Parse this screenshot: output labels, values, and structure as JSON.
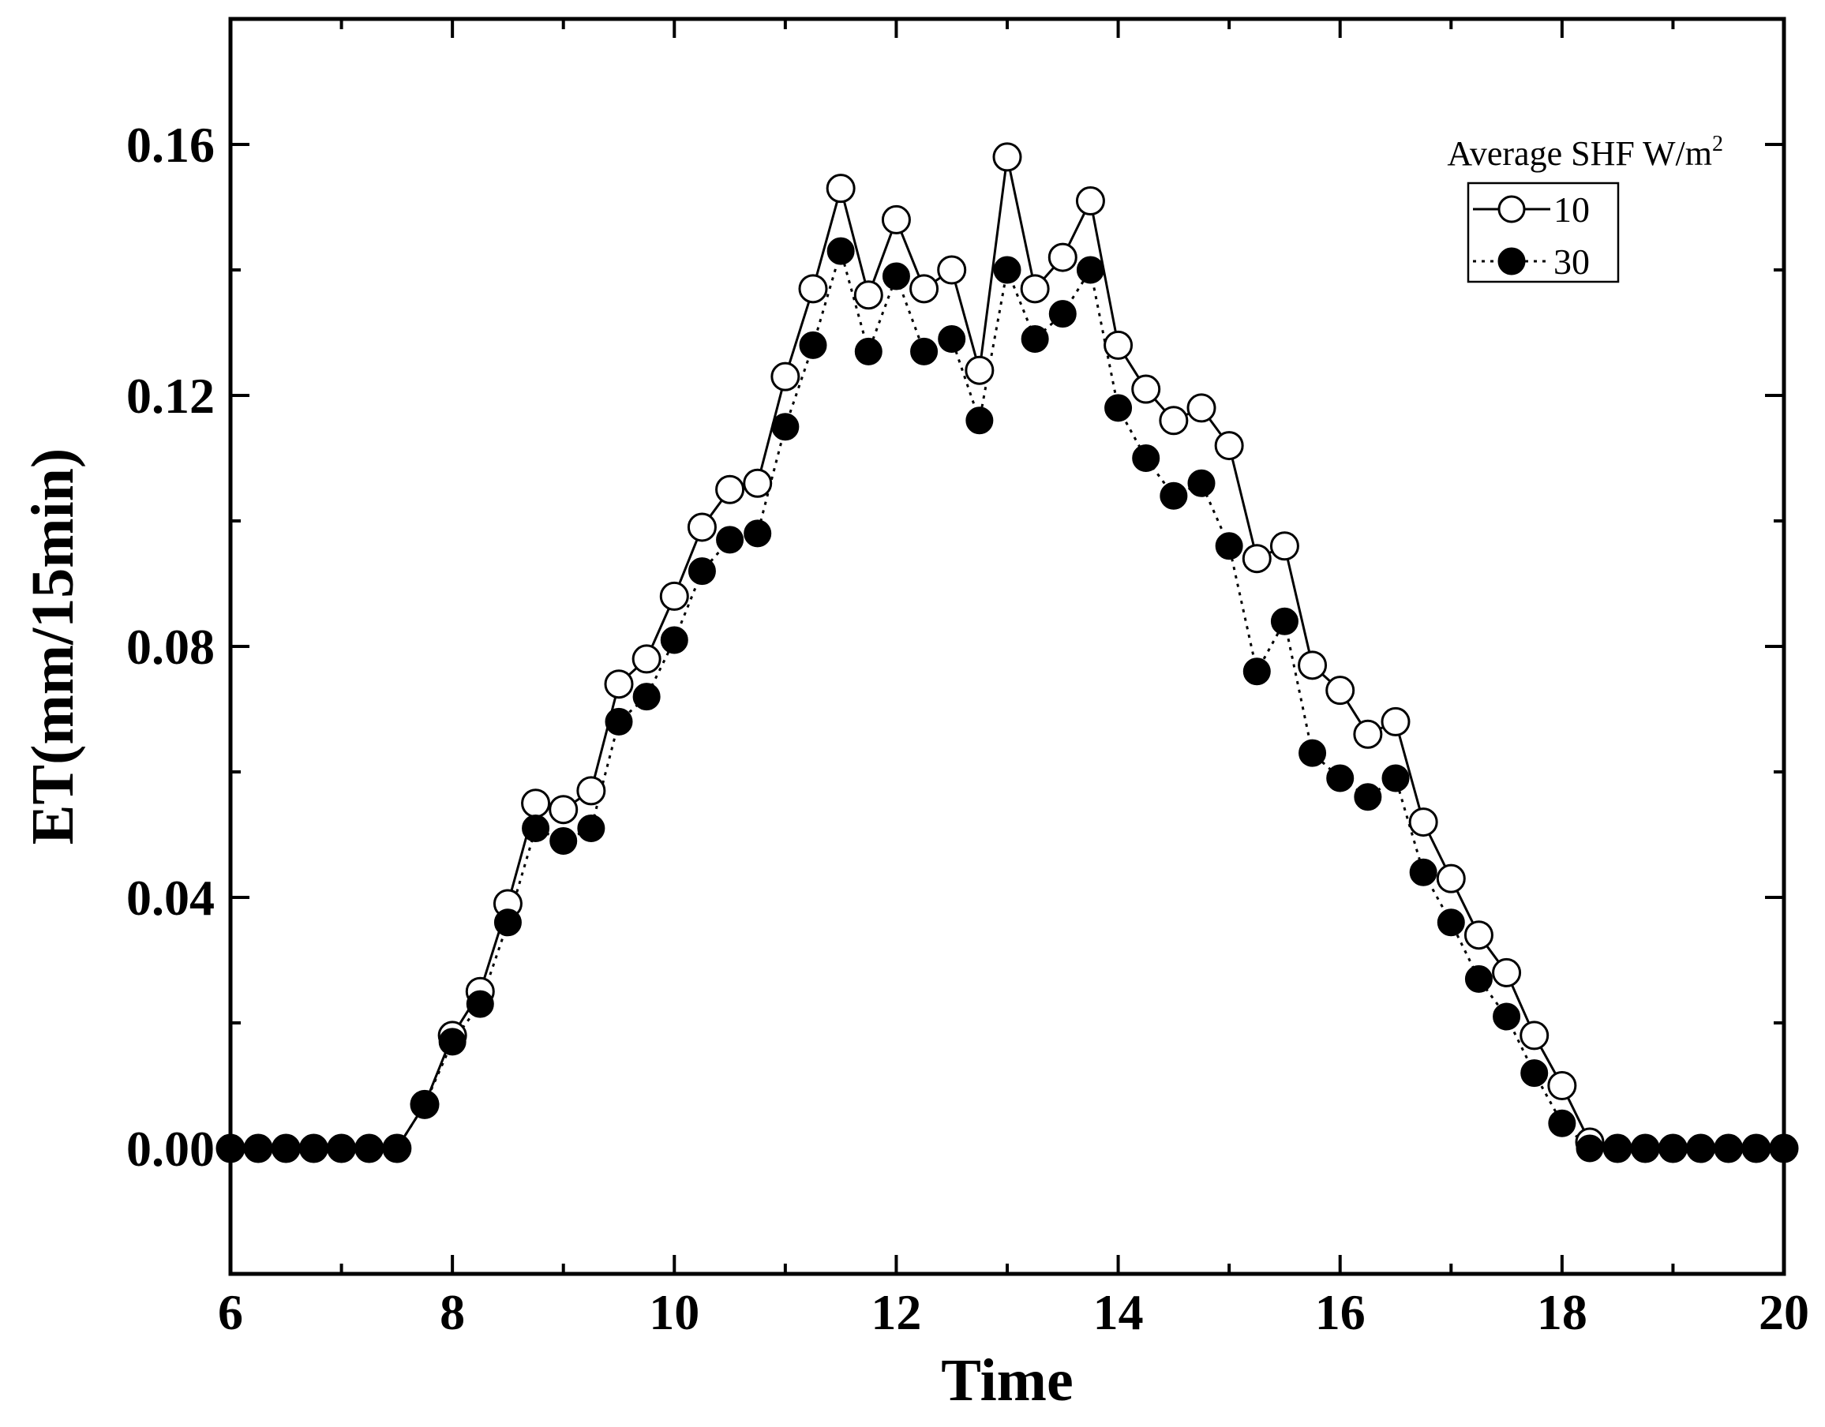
{
  "chart_data": {
    "type": "line",
    "title": "",
    "xlabel": "Time",
    "ylabel": "ET(mm/15min)",
    "xlim": [
      6,
      20
    ],
    "ylim": [
      -0.02,
      0.18
    ],
    "x_ticks": [
      6,
      8,
      10,
      12,
      14,
      16,
      18,
      20
    ],
    "x_tick_labels": [
      "6",
      "8",
      "10",
      "12",
      "14",
      "16",
      "18",
      "20"
    ],
    "y_ticks": [
      0,
      0.04,
      0.08,
      0.12,
      0.16
    ],
    "y_tick_labels": [
      "0.00",
      "0.04",
      "0.08",
      "0.12",
      "0.16"
    ],
    "grid": false,
    "legend": {
      "title_prefix": "Average SHF W/m",
      "title_superscript": "2",
      "placement": "top-right"
    },
    "x": [
      6,
      6.25,
      6.5,
      6.75,
      7,
      7.25,
      7.5,
      7.75,
      8,
      8.25,
      8.5,
      8.75,
      9,
      9.25,
      9.5,
      9.75,
      10,
      10.25,
      10.5,
      10.75,
      11,
      11.25,
      11.5,
      11.75,
      12,
      12.25,
      12.5,
      12.75,
      13,
      13.25,
      13.5,
      13.75,
      14,
      14.25,
      14.5,
      14.75,
      15,
      15.25,
      15.5,
      15.75,
      16,
      16.25,
      16.5,
      16.75,
      17,
      17.25,
      17.5,
      17.75,
      18,
      18.25,
      18.5,
      18.75,
      19,
      19.25,
      19.5,
      19.75,
      20
    ],
    "series": [
      {
        "name": "10",
        "marker": "open-circle",
        "line": "solid",
        "values": [
          0,
          0,
          0,
          0,
          0,
          0,
          0,
          0.007,
          0.018,
          0.025,
          0.039,
          0.055,
          0.054,
          0.057,
          0.074,
          0.078,
          0.088,
          0.099,
          0.105,
          0.106,
          0.123,
          0.137,
          0.153,
          0.136,
          0.148,
          0.137,
          0.14,
          0.124,
          0.158,
          0.137,
          0.142,
          0.151,
          0.128,
          0.121,
          0.116,
          0.118,
          0.112,
          0.094,
          0.096,
          0.077,
          0.073,
          0.066,
          0.068,
          0.052,
          0.043,
          0.034,
          0.028,
          0.018,
          0.01,
          0.001,
          0,
          0,
          0,
          0,
          0,
          0,
          0
        ]
      },
      {
        "name": "30",
        "marker": "filled-circle",
        "line": "dotted",
        "values": [
          0,
          0,
          0,
          0,
          0,
          0,
          0,
          0.007,
          0.017,
          0.023,
          0.036,
          0.051,
          0.049,
          0.051,
          0.068,
          0.072,
          0.081,
          0.092,
          0.097,
          0.098,
          0.115,
          0.128,
          0.143,
          0.127,
          0.139,
          0.127,
          0.129,
          0.116,
          0.14,
          0.129,
          0.133,
          0.14,
          0.118,
          0.11,
          0.104,
          0.106,
          0.096,
          0.076,
          0.084,
          0.063,
          0.059,
          0.056,
          0.059,
          0.044,
          0.036,
          0.027,
          0.021,
          0.012,
          0.004,
          0,
          0,
          0,
          0,
          0,
          0,
          0,
          0
        ]
      }
    ]
  }
}
